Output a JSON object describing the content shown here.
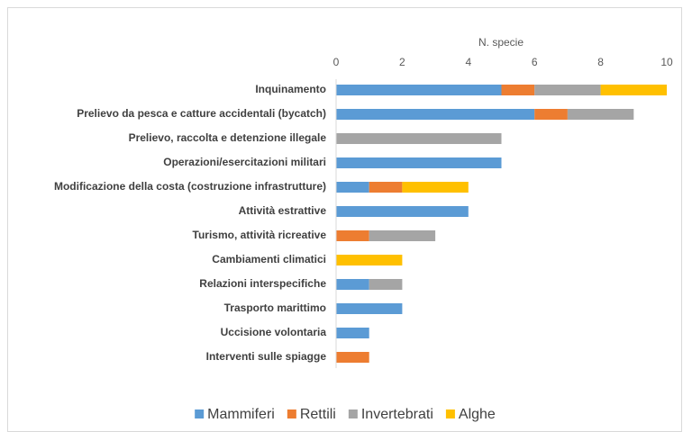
{
  "chart_data": {
    "type": "bar",
    "orientation": "horizontal",
    "stacked": true,
    "x_label": "N. specie",
    "categories": [
      "Inquinamento",
      "Prelievo da pesca e catture accidentali (bycatch)",
      "Prelievo, raccolta e detenzione illegale",
      "Operazioni/esercitazioni militari",
      "Modificazione della costa (costruzione infrastrutture)",
      "Attività estrattive",
      "Turismo, attività ricreative",
      "Cambiamenti climatici",
      "Relazioni interspecifiche",
      "Trasporto marittimo",
      "Uccisione volontaria",
      "Interventi sulle spiagge"
    ],
    "series": [
      {
        "name": "Mammiferi",
        "color": "#5b9bd5",
        "values": [
          5,
          6,
          0,
          5,
          1,
          4,
          0,
          0,
          1,
          2,
          1,
          0
        ]
      },
      {
        "name": "Rettili",
        "color": "#ed7d31",
        "values": [
          1,
          1,
          0,
          0,
          1,
          0,
          1,
          0,
          0,
          0,
          0,
          1
        ]
      },
      {
        "name": "Invertebrati",
        "color": "#a5a5a5",
        "values": [
          2,
          2,
          5,
          0,
          0,
          0,
          2,
          0,
          1,
          0,
          0,
          0
        ]
      },
      {
        "name": "Alghe",
        "color": "#ffc000",
        "values": [
          2,
          0,
          0,
          0,
          2,
          0,
          0,
          2,
          0,
          0,
          0,
          0
        ]
      }
    ],
    "xlim": [
      0,
      10
    ],
    "xticks": [
      0,
      2,
      4,
      6,
      8,
      10
    ],
    "grid": false,
    "legend": "bottom"
  }
}
